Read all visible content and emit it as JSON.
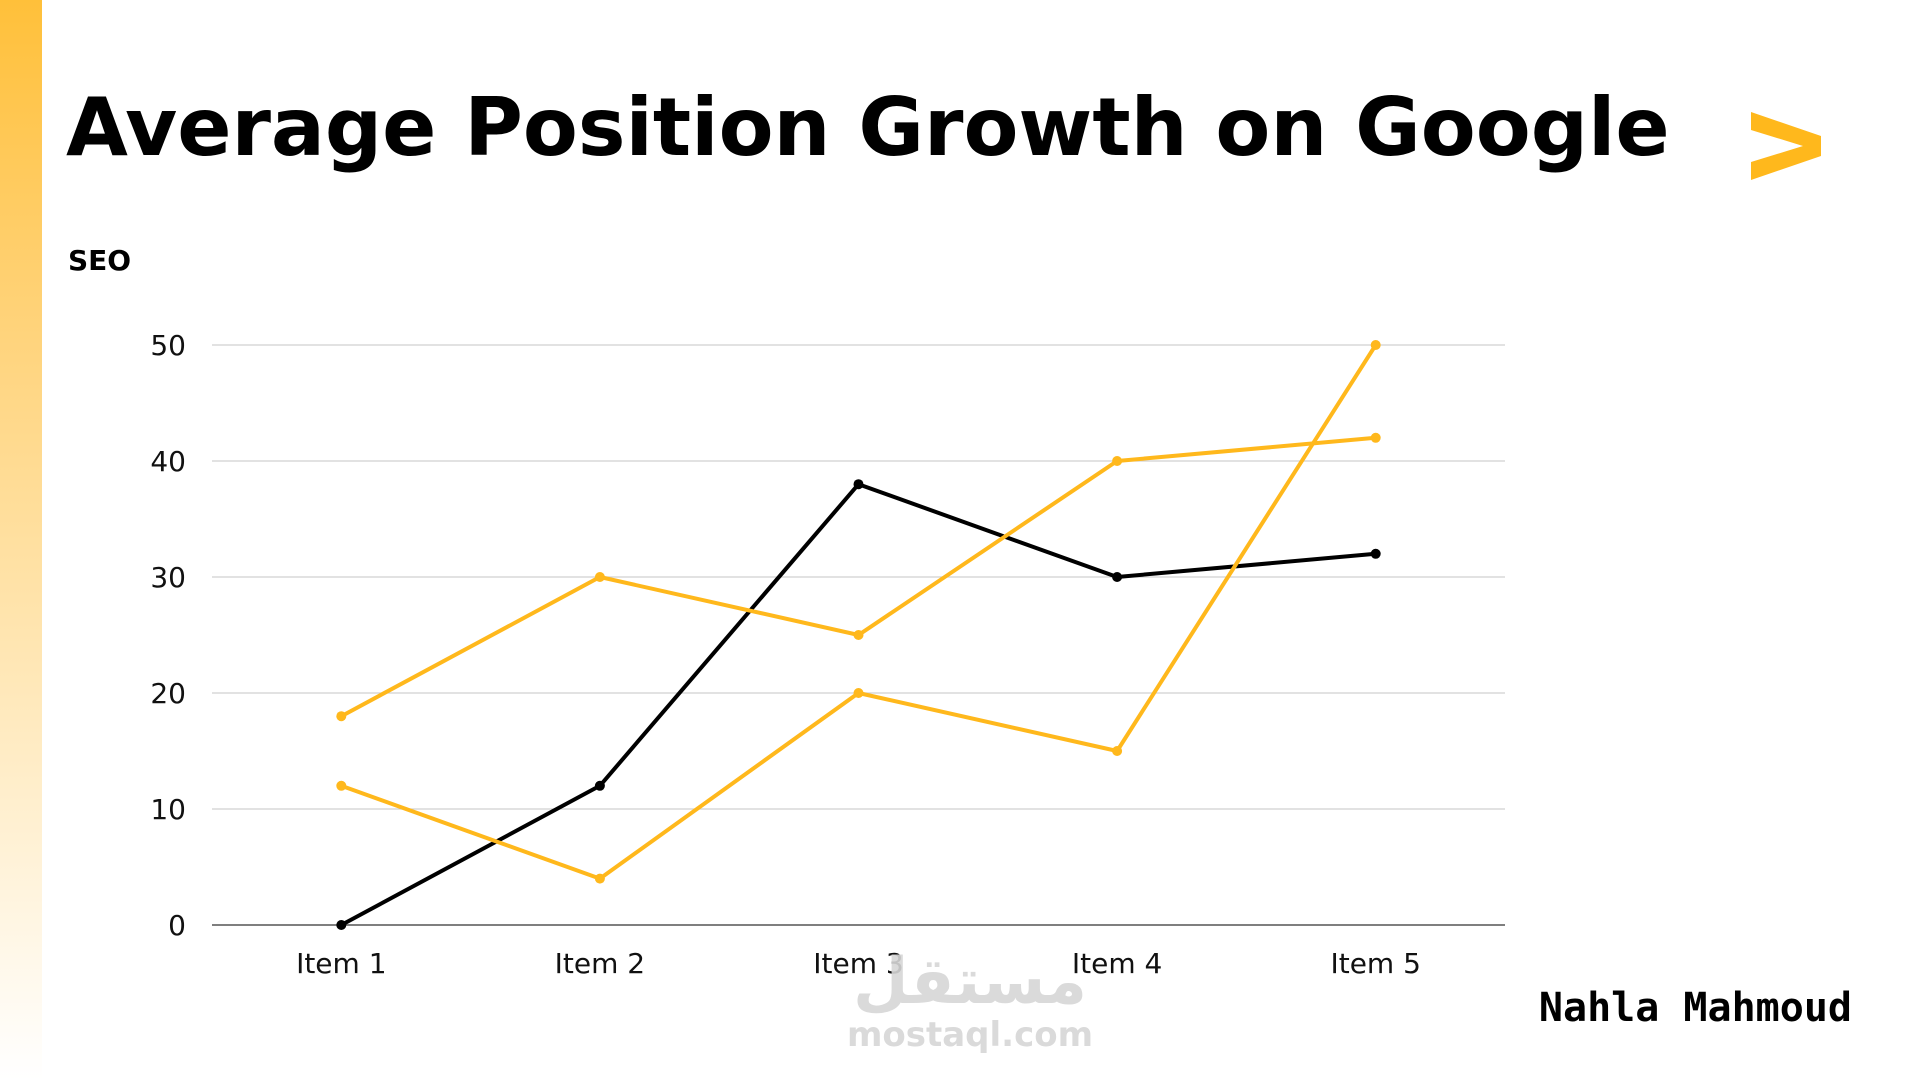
{
  "page": {
    "title": "Average Position Growth on Google",
    "subtitle": "SEO",
    "author": "Nahla Mahmoud",
    "watermark": {
      "main": "مستقل",
      "sub": "mostaql.com"
    },
    "colors": {
      "accent": "#FFB81C",
      "text": "#000000",
      "grid": "#D0D0D0"
    },
    "icons": {
      "title_arrow": "play-arrow-icon"
    }
  },
  "chart_data": {
    "type": "line",
    "title": "Average Position Growth on Google",
    "subtitle": "SEO",
    "xlabel": "",
    "ylabel": "",
    "categories": [
      "Item 1",
      "Item 2",
      "Item 3",
      "Item 4",
      "Item 5"
    ],
    "ylim": [
      0,
      50
    ],
    "yticks": [
      0,
      10,
      20,
      30,
      40,
      50
    ],
    "grid": true,
    "legend": "none",
    "series": [
      {
        "color": "#000000",
        "values": [
          0,
          12,
          38,
          30,
          32
        ]
      },
      {
        "color": "#FFB81C",
        "values": [
          18,
          30,
          25,
          40,
          42
        ]
      },
      {
        "color": "#FFB81C",
        "values": [
          12,
          4,
          20,
          15,
          50
        ]
      }
    ]
  }
}
